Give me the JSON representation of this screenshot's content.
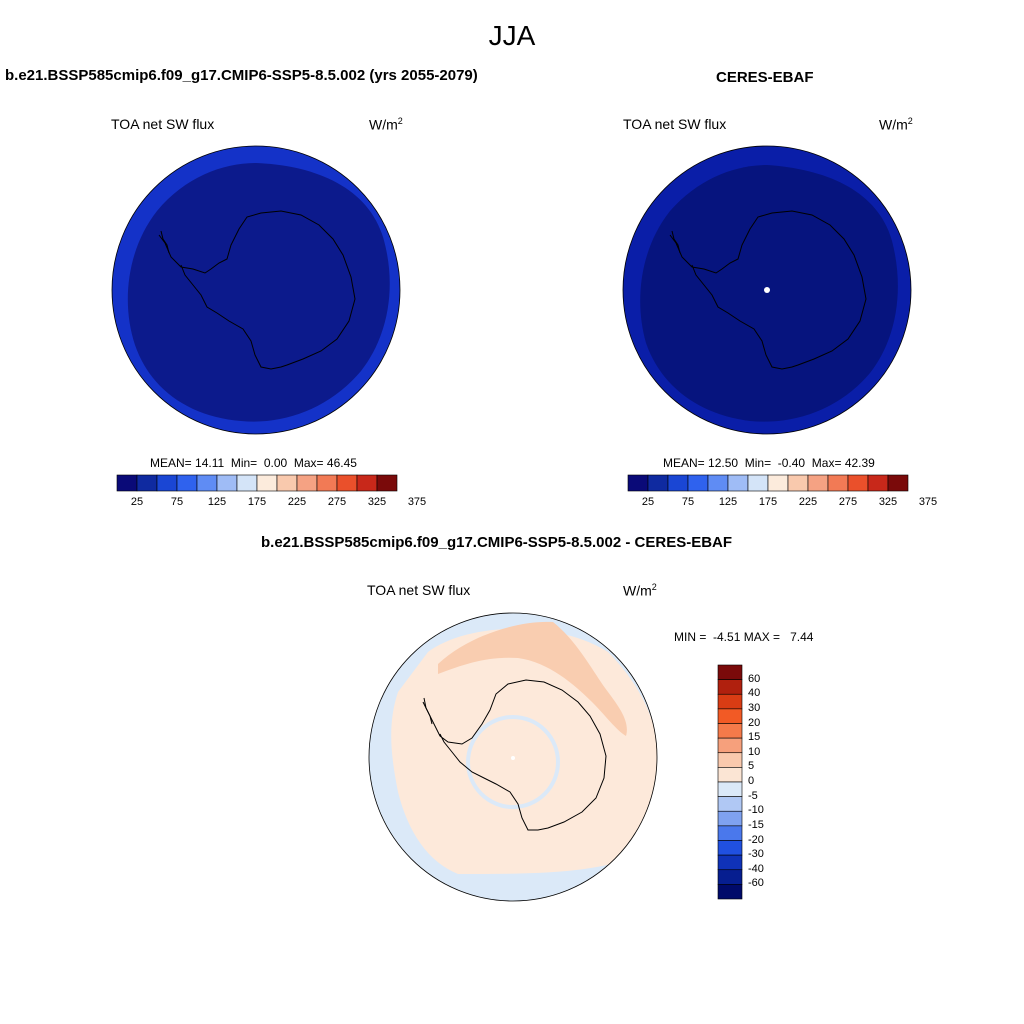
{
  "figure": {
    "season": "JJA"
  },
  "panels": {
    "model": {
      "title": "b.e21.BSSP585cmip6.f09_g17.CMIP6-SSP5-8.5.002 (yrs 2055-2079)",
      "variable": "TOA net SW flux",
      "units_base": "W/m",
      "units_exp": "2",
      "stats": {
        "mean_label": "MEAN=",
        "mean": "14.11",
        "min_label": "Min=",
        "min": "0.00",
        "max_label": "Max=",
        "max": "46.45"
      }
    },
    "obs": {
      "title": "CERES-EBAF",
      "variable": "TOA net SW flux",
      "units_base": "W/m",
      "units_exp": "2",
      "stats": {
        "mean_label": "MEAN=",
        "mean": "12.50",
        "min_label": "Min=",
        "min": "-0.40",
        "max_label": "Max=",
        "max": "42.39"
      }
    },
    "diff": {
      "title": "b.e21.BSSP585cmip6.f09_g17.CMIP6-SSP5-8.5.002 - CERES-EBAF",
      "variable": "TOA net SW flux",
      "units_base": "W/m",
      "units_exp": "2",
      "stats": {
        "min_label": "MIN =",
        "min": "-4.51",
        "max_label": "MAX =",
        "max": "7.44"
      }
    }
  },
  "colorbars": {
    "horizontal": {
      "colors": [
        "#0a0a78",
        "#0f2aa0",
        "#1a46d4",
        "#2f62ee",
        "#5f8cf4",
        "#9fbcf6",
        "#d4e4f8",
        "#fcebdc",
        "#f9c9ad",
        "#f5a283",
        "#f27a55",
        "#ea502b",
        "#c8281a",
        "#7a0a0a"
      ],
      "ticks": [
        "25",
        "75",
        "125",
        "175",
        "225",
        "275",
        "325",
        "375"
      ]
    },
    "vertical": {
      "colors_top_to_bottom": [
        "#7a0a0a",
        "#b0200e",
        "#d93c14",
        "#f25a25",
        "#f57a4a",
        "#f6a07c",
        "#f9c9ad",
        "#fbe5d4",
        "#dbe9f8",
        "#b0c8f4",
        "#7fa2f0",
        "#4a78ec",
        "#2050e0",
        "#0f32b8",
        "#061e90",
        "#000a6a"
      ],
      "ticks": [
        "60",
        "40",
        "30",
        "20",
        "15",
        "10",
        "5",
        "0",
        "-5",
        "-10",
        "-15",
        "-20",
        "-30",
        "-40",
        "-60"
      ]
    }
  },
  "map_colors": {
    "model_outer": "#1432c8",
    "model_inner": "#0c1a8c",
    "obs_outer": "#0a1ea8",
    "obs_inner": "#06147e",
    "diff_base": "#fde9da",
    "diff_positive": "#f9cdb0",
    "diff_negative": "#dbe9f8"
  }
}
